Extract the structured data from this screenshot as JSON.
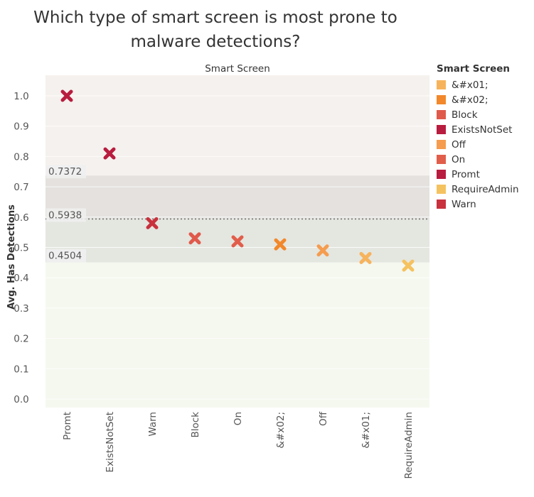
{
  "title": {
    "line1": "Which type of smart screen is most prone to",
    "line2": "malware detections?"
  },
  "chart_data": {
    "type": "scatter",
    "column_header": "Smart Screen",
    "ylabel": "Avg. Has Detections",
    "ylim": [
      -0.03,
      1.07
    ],
    "yticks": [
      "0.0",
      "0.1",
      "0.2",
      "0.3",
      "0.4",
      "0.5",
      "0.6",
      "0.7",
      "0.8",
      "0.9",
      "1.0"
    ],
    "categories": [
      "Promt",
      "ExistsNotSet",
      "Warn",
      "Block",
      "On",
      "&#x02;",
      "Off",
      "&#x01;",
      "RequireAdmin"
    ],
    "values": [
      1.0,
      0.81,
      0.58,
      0.53,
      0.52,
      0.51,
      0.49,
      0.465,
      0.44
    ],
    "colors": [
      "#b81c3f",
      "#b81c3f",
      "#c8313d",
      "#e05a4c",
      "#e15e4b",
      "#f2882b",
      "#f59c4f",
      "#f7b35c",
      "#f5c260"
    ],
    "marker": "x",
    "reference_lines": [
      {
        "label": "0.7372",
        "value": 0.7372
      },
      {
        "label": "0.5938",
        "value": 0.5938
      },
      {
        "label": "0.4504",
        "value": 0.4504
      }
    ],
    "bands": {
      "top_color": "#f5f1ee",
      "upper_band_color": "#e4e1de",
      "lower_band_color": "#e4e6e0",
      "bottom_color": "#f5f8ef"
    },
    "grid": true,
    "legend": {
      "title": "Smart Screen",
      "position": "right",
      "items": [
        {
          "label": "&#x01;",
          "color": "#f7b35c"
        },
        {
          "label": "&#x02;",
          "color": "#f2882b"
        },
        {
          "label": "Block",
          "color": "#e05a4c"
        },
        {
          "label": "ExistsNotSet",
          "color": "#b81c3f"
        },
        {
          "label": "Off",
          "color": "#f59c4f"
        },
        {
          "label": "On",
          "color": "#e15e4b"
        },
        {
          "label": "Promt",
          "color": "#b81c3f"
        },
        {
          "label": "RequireAdmin",
          "color": "#f5c260"
        },
        {
          "label": "Warn",
          "color": "#c8313d"
        }
      ]
    }
  }
}
